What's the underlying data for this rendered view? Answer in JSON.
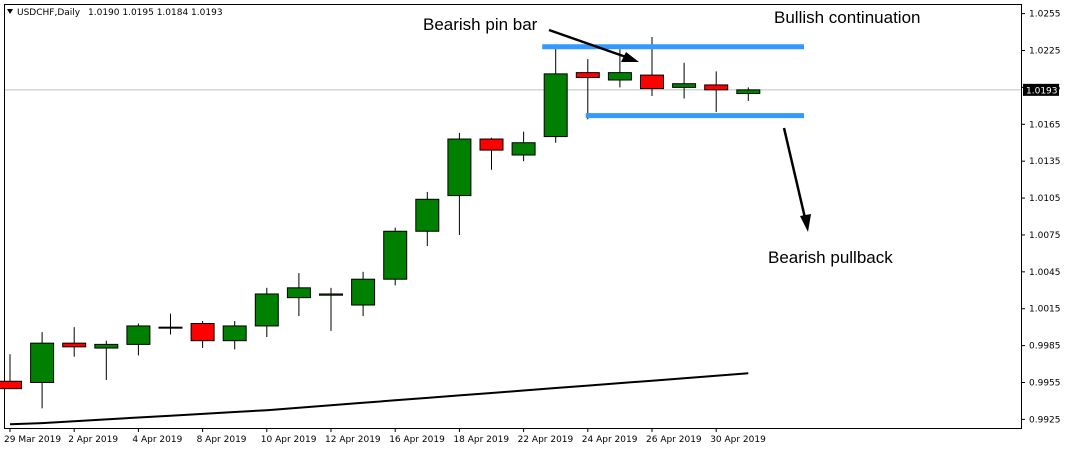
{
  "header": {
    "symbol": "USDCHF,Daily",
    "ohlc": "1.0190 1.0195 1.0184 1.0193"
  },
  "current_price_label": "1.0193",
  "colors": {
    "bull": "#008000",
    "bear": "#ff0000",
    "level": "#3399ff",
    "ma": "#000000",
    "price_line": "#c0c0c0",
    "background": "#ffffff"
  },
  "chart_data": {
    "type": "candlestick",
    "title": "USDCHF,Daily",
    "ylim": [
      0.9918,
      1.0262
    ],
    "y_ticks": [
      "1.0255",
      "1.0225",
      "1.0195",
      "1.0165",
      "1.0135",
      "1.0105",
      "1.0075",
      "1.0045",
      "1.0015",
      "0.9985",
      "0.9955",
      "0.9925"
    ],
    "x_tick_labels": [
      "29 Mar 2019",
      "2 Apr 2019",
      "4 Apr 2019",
      "8 Apr 2019",
      "10 Apr 2019",
      "12 Apr 2019",
      "16 Apr 2019",
      "18 Apr 2019",
      "22 Apr 2019",
      "24 Apr 2019",
      "26 Apr 2019",
      "30 Apr 2019"
    ],
    "candles": [
      {
        "o": 0.9956,
        "h": 0.9978,
        "l": 0.995,
        "c": 0.995
      },
      {
        "o": 0.9955,
        "h": 0.9996,
        "l": 0.9934,
        "c": 0.9987
      },
      {
        "o": 0.9987,
        "h": 1.0,
        "l": 0.9976,
        "c": 0.9984
      },
      {
        "o": 0.9983,
        "h": 0.9989,
        "l": 0.9957,
        "c": 0.9986
      },
      {
        "o": 0.9986,
        "h": 1.0003,
        "l": 0.9977,
        "c": 1.0001
      },
      {
        "o": 1.0,
        "h": 1.0011,
        "l": 0.9994,
        "c": 1.0
      },
      {
        "o": 1.0003,
        "h": 1.0005,
        "l": 0.9983,
        "c": 0.9989
      },
      {
        "o": 0.9989,
        "h": 1.0005,
        "l": 0.9982,
        "c": 1.0001
      },
      {
        "o": 1.0001,
        "h": 1.0032,
        "l": 0.9992,
        "c": 1.0027
      },
      {
        "o": 1.0024,
        "h": 1.0044,
        "l": 1.0009,
        "c": 1.0032
      },
      {
        "o": 1.0026,
        "h": 1.0032,
        "l": 0.9997,
        "c": 1.0027
      },
      {
        "o": 1.0018,
        "h": 1.0045,
        "l": 1.0009,
        "c": 1.0039
      },
      {
        "o": 1.0039,
        "h": 1.0081,
        "l": 1.0034,
        "c": 1.0078
      },
      {
        "o": 1.0078,
        "h": 1.011,
        "l": 1.0066,
        "c": 1.0104
      },
      {
        "o": 1.0107,
        "h": 1.0158,
        "l": 1.0075,
        "c": 1.0153
      },
      {
        "o": 1.0153,
        "h": 1.0154,
        "l": 1.0128,
        "c": 1.0144
      },
      {
        "o": 1.014,
        "h": 1.0159,
        "l": 1.0135,
        "c": 1.015
      },
      {
        "o": 1.0155,
        "h": 1.023,
        "l": 1.015,
        "c": 1.0206
      },
      {
        "o": 1.0207,
        "h": 1.0218,
        "l": 1.0169,
        "c": 1.0203
      },
      {
        "o": 1.0201,
        "h": 1.0226,
        "l": 1.0195,
        "c": 1.0207
      },
      {
        "o": 1.0205,
        "h": 1.0236,
        "l": 1.0188,
        "c": 1.0194
      },
      {
        "o": 1.0195,
        "h": 1.0215,
        "l": 1.0186,
        "c": 1.0198
      },
      {
        "o": 1.0197,
        "h": 1.0208,
        "l": 1.0175,
        "c": 1.0193
      },
      {
        "o": 1.019,
        "h": 1.0195,
        "l": 1.0184,
        "c": 1.0193
      }
    ],
    "moving_average": [
      0.9921,
      0.9922,
      0.99235,
      0.9925,
      0.99265,
      0.9928,
      0.99295,
      0.9931,
      0.99325,
      0.99345,
      0.99365,
      0.99385,
      0.99405,
      0.99425,
      0.99445,
      0.99465,
      0.99485,
      0.99505,
      0.99525,
      0.99545,
      0.99565,
      0.99585,
      0.99605,
      0.99625
    ],
    "levels": {
      "resistance": 1.0228,
      "support": 1.0172
    },
    "current_price": 1.0193,
    "annotations": [
      "Bearish pin bar",
      "Bullish continuation",
      "Bearish pullback"
    ]
  }
}
